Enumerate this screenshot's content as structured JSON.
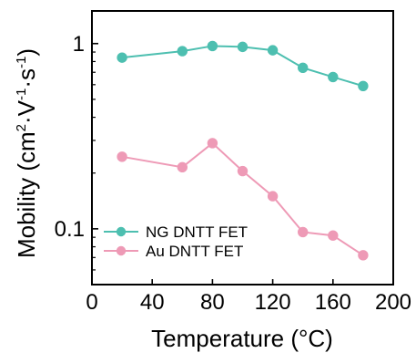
{
  "chart_data": {
    "type": "line",
    "title": "",
    "xlabel": "Temperature (°C)",
    "ylabel_main": "Mobility (cm",
    "ylabel_sup1": "2",
    "ylabel_mid1": "·V",
    "ylabel_sup2": "-1",
    "ylabel_mid2": "·s",
    "ylabel_sup3": "-1",
    "ylabel_end": ")",
    "xlim": [
      0,
      200
    ],
    "ylim": [
      0.05,
      1.5
    ],
    "yscale": "log",
    "xticks": [
      0,
      40,
      80,
      120,
      160,
      200
    ],
    "xtick_labels": [
      "0",
      "40",
      "80",
      "120",
      "160",
      "200"
    ],
    "yticks": [
      0.1,
      1
    ],
    "ytick_labels": [
      "0.1",
      "1"
    ],
    "grid": false,
    "legend_position": "bottom-left",
    "x": [
      20,
      60,
      80,
      100,
      120,
      140,
      160,
      180
    ],
    "series": [
      {
        "name": "NG DNTT FET",
        "color": "#4dbfb0",
        "values": [
          0.84,
          0.91,
          0.97,
          0.96,
          0.92,
          0.74,
          0.66,
          0.59
        ]
      },
      {
        "name": "Au DNTT FET",
        "color": "#ee9ab6",
        "values": [
          0.245,
          0.215,
          0.29,
          0.205,
          0.15,
          0.096,
          0.092,
          0.072
        ]
      }
    ]
  }
}
